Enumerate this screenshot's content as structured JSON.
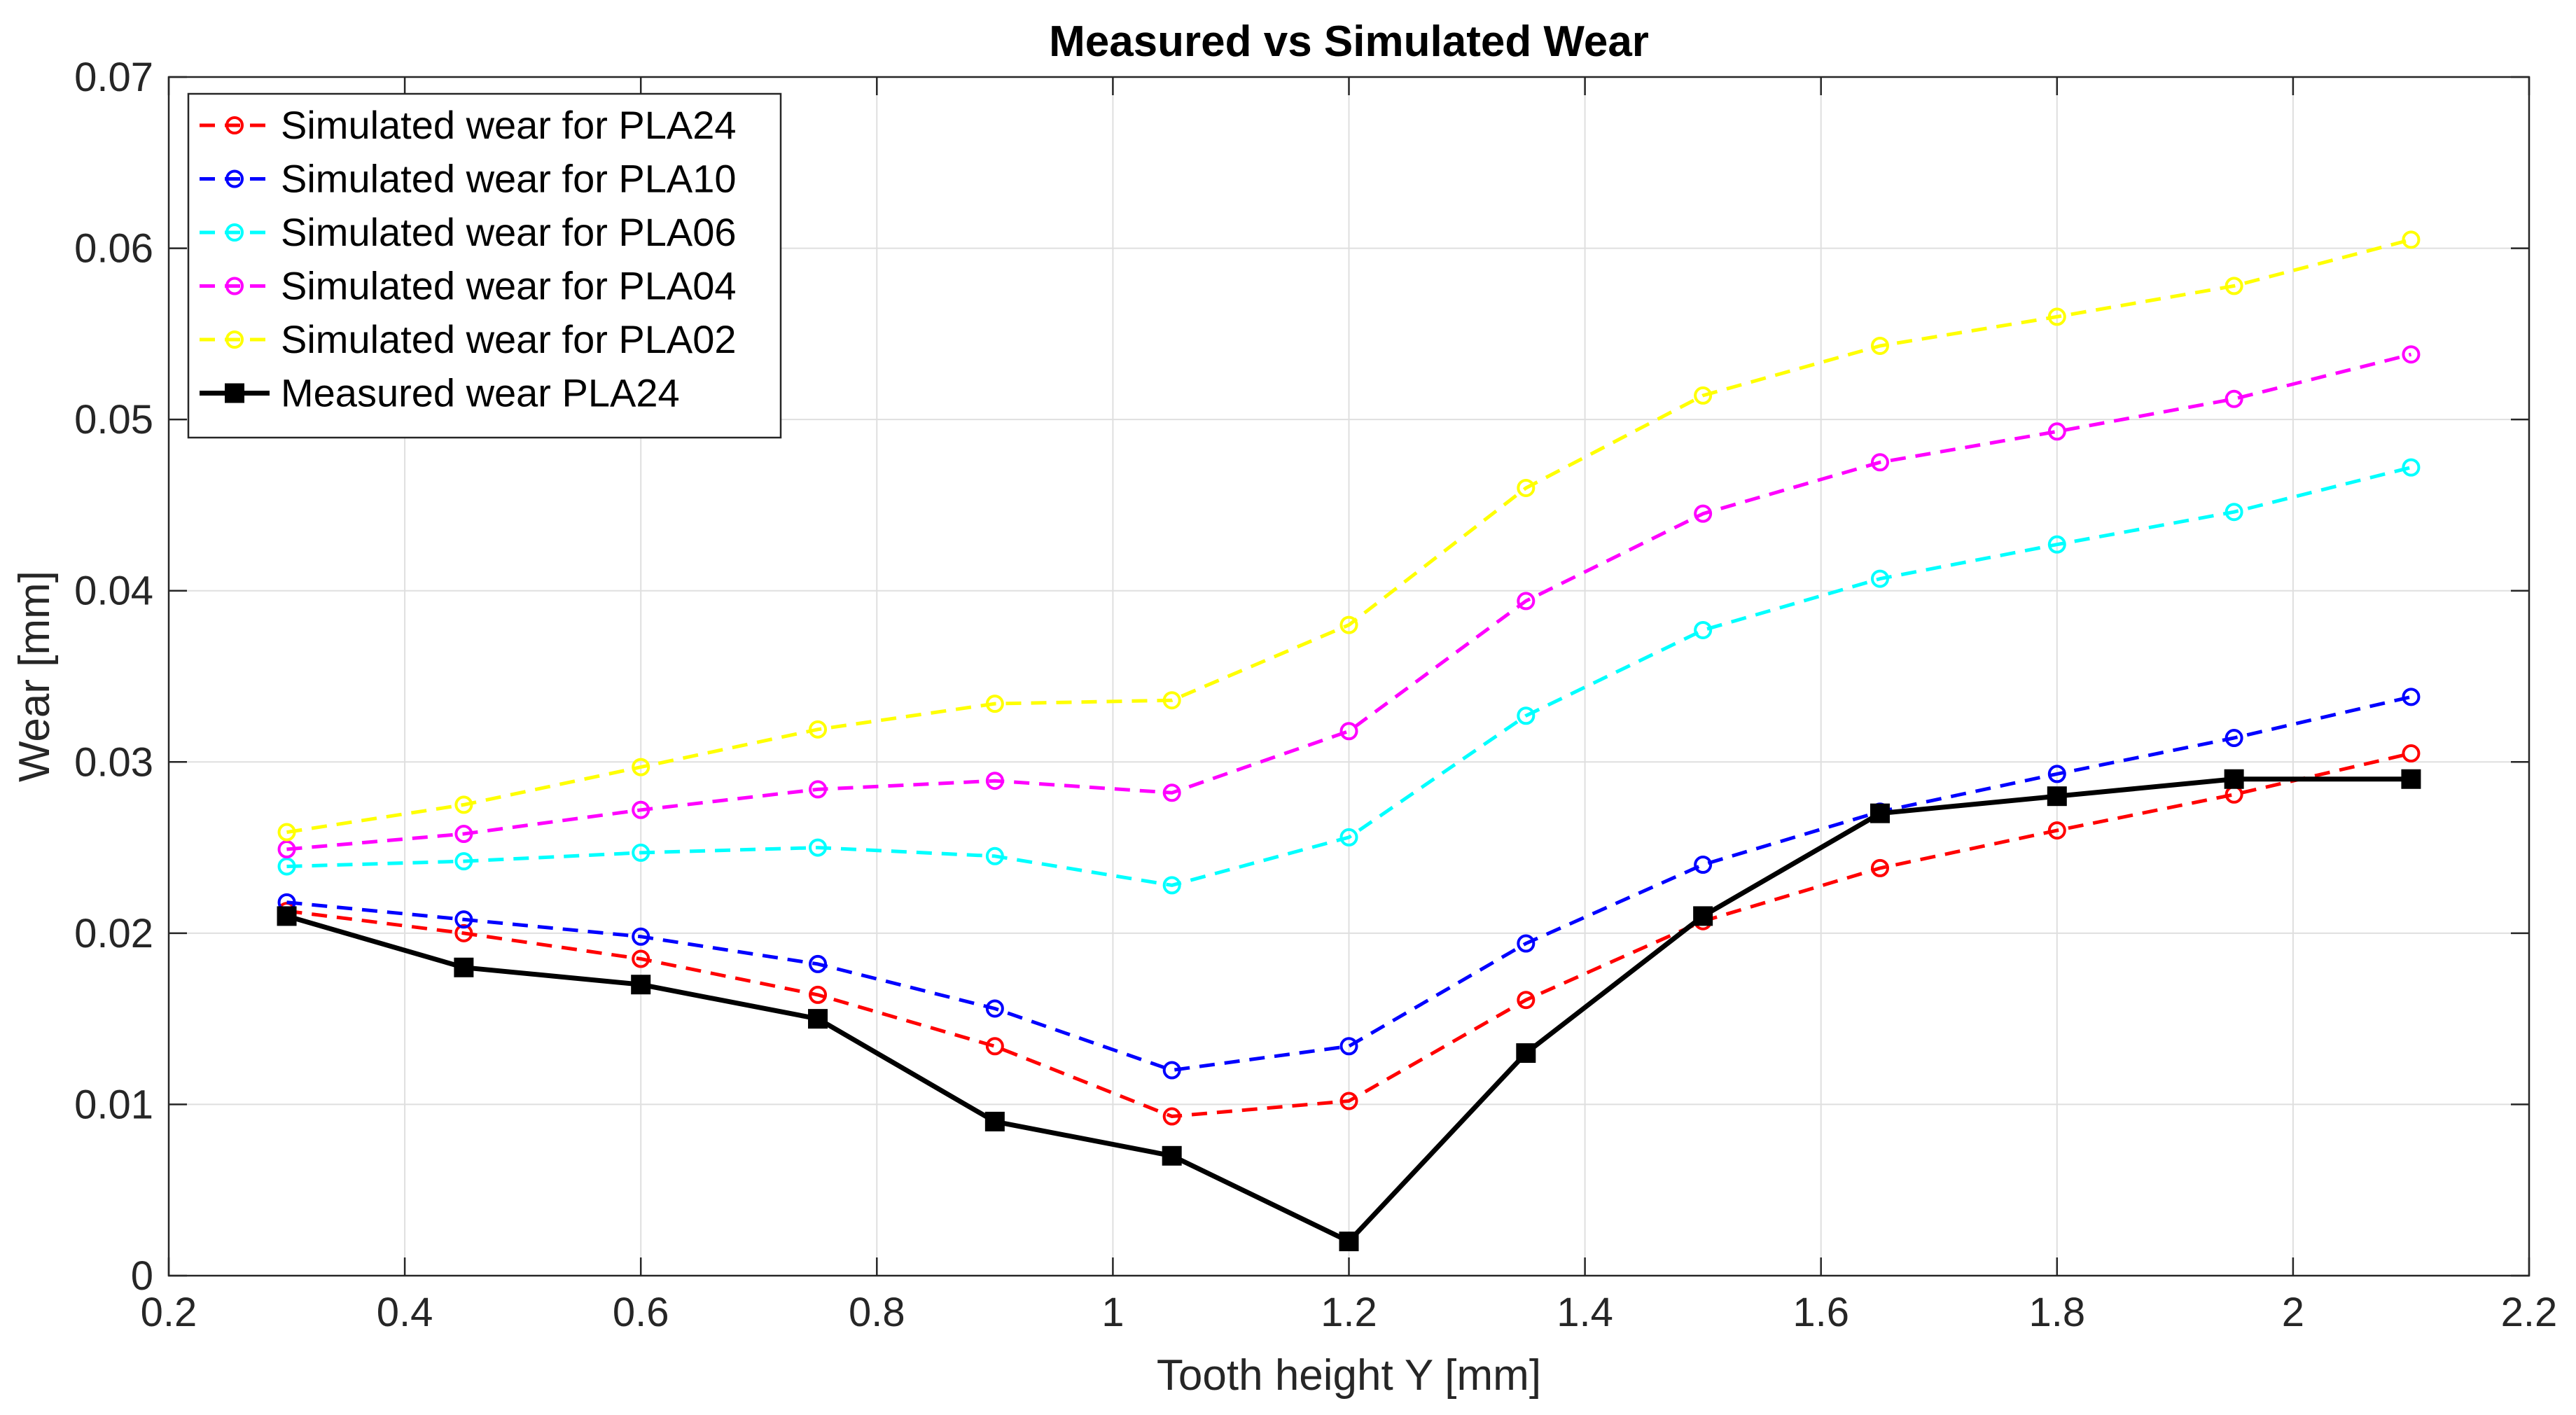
{
  "chart_data": {
    "type": "line",
    "title": "Measured vs Simulated Wear",
    "xlabel": "Tooth height Y [mm]",
    "ylabel": "Wear [mm]",
    "xlim": [
      0.2,
      2.2
    ],
    "ylim": [
      0,
      0.07
    ],
    "grid": true,
    "legend_position": "top-left",
    "x_ticks": [
      0.2,
      0.4,
      0.6,
      0.8,
      1,
      1.2,
      1.4,
      1.6,
      1.8,
      2,
      2.2
    ],
    "x_tick_labels": [
      "0.2",
      "0.4",
      "0.6",
      "0.8",
      "1",
      "1.2",
      "1.4",
      "1.6",
      "1.8",
      "2",
      "2.2"
    ],
    "y_ticks": [
      0,
      0.01,
      0.02,
      0.03,
      0.04,
      0.05,
      0.06,
      0.07
    ],
    "y_tick_labels": [
      "0",
      "0.01",
      "0.02",
      "0.03",
      "0.04",
      "0.05",
      "0.06",
      "0.07"
    ],
    "x": [
      0.3,
      0.45,
      0.6,
      0.75,
      0.9,
      1.05,
      1.2,
      1.35,
      1.5,
      1.65,
      1.8,
      1.95,
      2.1
    ],
    "series": [
      {
        "name": "Simulated wear for PLA24",
        "color": "#ff0000",
        "style": "dashed",
        "marker": "circle",
        "values": [
          0.0213,
          0.02,
          0.0185,
          0.0164,
          0.0134,
          0.0093,
          0.0102,
          0.0161,
          0.0207,
          0.0238,
          0.026,
          0.0281,
          0.0305
        ]
      },
      {
        "name": "Simulated wear for PLA10",
        "color": "#0000ff",
        "style": "dashed",
        "marker": "circle",
        "values": [
          0.0218,
          0.0208,
          0.0198,
          0.0182,
          0.0156,
          0.012,
          0.0134,
          0.0194,
          0.024,
          0.0271,
          0.0293,
          0.0314,
          0.0338
        ]
      },
      {
        "name": "Simulated wear for PLA06",
        "color": "#00ffff",
        "style": "dashed",
        "marker": "circle",
        "values": [
          0.0239,
          0.0242,
          0.0247,
          0.025,
          0.0245,
          0.0228,
          0.0256,
          0.0327,
          0.0377,
          0.0407,
          0.0427,
          0.0446,
          0.0472
        ]
      },
      {
        "name": "Simulated wear for PLA04",
        "color": "#ff00ff",
        "style": "dashed",
        "marker": "circle",
        "values": [
          0.0249,
          0.0258,
          0.0272,
          0.0284,
          0.0289,
          0.0282,
          0.0318,
          0.0394,
          0.0445,
          0.0475,
          0.0493,
          0.0512,
          0.0538
        ]
      },
      {
        "name": "Simulated wear for PLA02",
        "color": "#ffff00",
        "style": "dashed",
        "marker": "circle",
        "values": [
          0.0259,
          0.0275,
          0.0297,
          0.0319,
          0.0334,
          0.0336,
          0.038,
          0.046,
          0.0514,
          0.0543,
          0.056,
          0.0578,
          0.0605
        ]
      },
      {
        "name": "Measured wear PLA24",
        "color": "#000000",
        "style": "solid",
        "marker": "square",
        "values": [
          0.021,
          0.018,
          0.017,
          0.015,
          0.009,
          0.007,
          0.002,
          0.013,
          0.021,
          0.027,
          0.028,
          0.029,
          0.029
        ]
      }
    ]
  }
}
